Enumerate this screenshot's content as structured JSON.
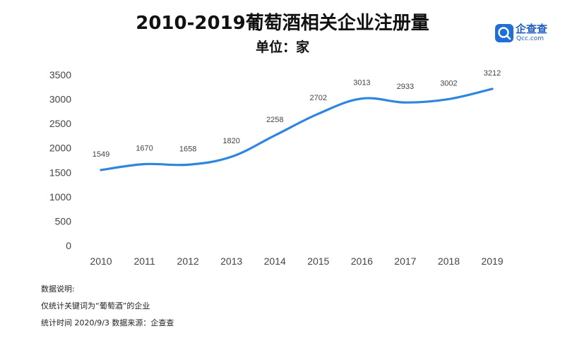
{
  "title": "2010-2019葡萄酒相关企业注册量",
  "subtitle": "单位：家",
  "logo": {
    "name": "企查查",
    "sub": "Qcc.com"
  },
  "chart_data": {
    "type": "line",
    "title": "2010-2019葡萄酒相关企业注册量",
    "subtitle": "单位：家",
    "categories": [
      "2010",
      "2011",
      "2012",
      "2013",
      "2014",
      "2015",
      "2016",
      "2017",
      "2018",
      "2019"
    ],
    "values": [
      1549,
      1670,
      1658,
      1820,
      2258,
      2702,
      3013,
      2933,
      3002,
      3212
    ],
    "ylim": [
      0,
      3500
    ],
    "yticks": [
      "0",
      "500",
      "1000",
      "1500",
      "2000",
      "2500",
      "3000",
      "3500"
    ],
    "grid": false,
    "color": "#2e86de"
  },
  "notes": {
    "heading": "数据说明:",
    "line1": "仅统计关键词为“葡萄酒”的企业",
    "line2": "统计时间 2020/9/3   数据来源：企查查"
  }
}
